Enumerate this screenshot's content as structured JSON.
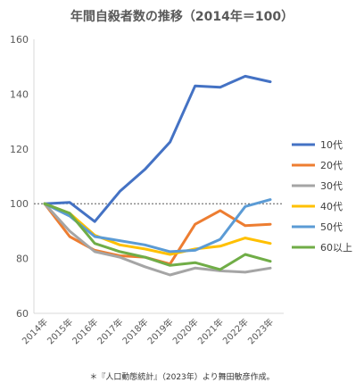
{
  "chart_data": {
    "type": "line",
    "title": "年間自殺者数の推移（2014年＝100）",
    "footnote": "＊『人口動態統計』（2023年）より舞田敏彦作成。",
    "categories": [
      "2014年",
      "2015年",
      "2016年",
      "2017年",
      "2018年",
      "2019年",
      "2020年",
      "2021年",
      "2022年",
      "2023年"
    ],
    "ylim": [
      60,
      160
    ],
    "yticks": [
      60,
      80,
      100,
      120,
      140,
      160
    ],
    "reference_line": 100,
    "legend_position": "right",
    "series": [
      {
        "name": "10代",
        "color": "#4472c4",
        "values": [
          100,
          100.5,
          93.5,
          104.5,
          112.5,
          122.5,
          143,
          142.5,
          146.5,
          144.5
        ]
      },
      {
        "name": "20代",
        "color": "#ed7d31",
        "values": [
          100,
          88,
          83,
          81,
          80.5,
          78,
          92.5,
          97.5,
          92,
          92.5
        ]
      },
      {
        "name": "30代",
        "color": "#a5a5a5",
        "values": [
          100,
          90,
          82.5,
          80.5,
          77,
          74,
          76.5,
          75.5,
          75,
          76.5
        ]
      },
      {
        "name": "40代",
        "color": "#ffc000",
        "values": [
          100,
          96.5,
          88.5,
          85,
          83.5,
          81.5,
          83.5,
          84.5,
          87.5,
          85.5
        ]
      },
      {
        "name": "50代",
        "color": "#5b9bd5",
        "values": [
          100,
          95.5,
          88,
          86.5,
          85,
          82.5,
          83,
          87,
          99,
          101.5
        ]
      },
      {
        "name": "60以上",
        "color": "#70ad47",
        "values": [
          100,
          96.5,
          85.5,
          82.5,
          80.5,
          77.5,
          78.5,
          76,
          81.5,
          79
        ]
      }
    ]
  }
}
